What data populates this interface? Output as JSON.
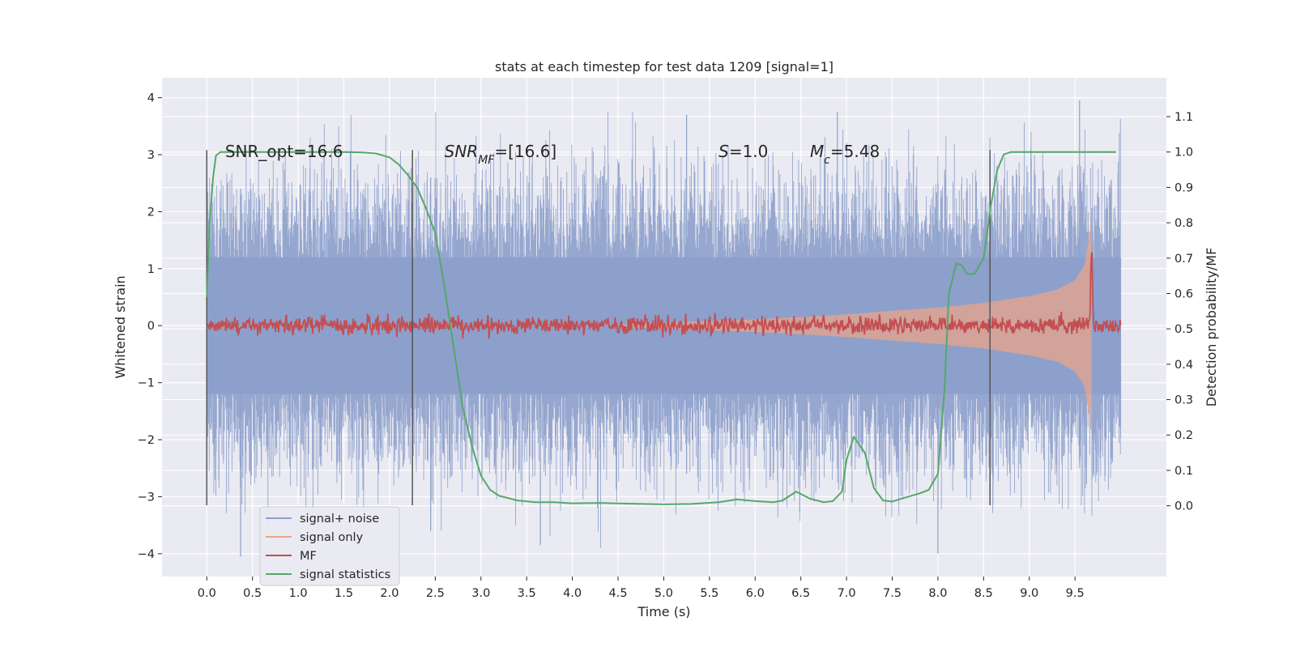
{
  "chart_data": {
    "type": "line",
    "title": "stats at each timestep for test data 1209 [signal=1]",
    "xlabel": "Time (s)",
    "ylabel_left": "Whitened strain",
    "ylabel_right": "Detection probability/MF",
    "xlim": [
      -0.49,
      10.5
    ],
    "ylim_left": [
      -4.4,
      4.35
    ],
    "ylim_right": [
      -0.2,
      1.21
    ],
    "x_ticks": [
      0.0,
      0.5,
      1.0,
      1.5,
      2.0,
      2.5,
      3.0,
      3.5,
      4.0,
      4.5,
      5.0,
      5.5,
      6.0,
      6.5,
      7.0,
      7.5,
      8.0,
      8.5,
      9.0,
      9.5
    ],
    "x_tick_labels": [
      "0.0",
      "0.5",
      "1.0",
      "1.5",
      "2.0",
      "2.5",
      "3.0",
      "3.5",
      "4.0",
      "4.5",
      "5.0",
      "5.5",
      "6.0",
      "6.5",
      "7.0",
      "7.5",
      "8.0",
      "8.5",
      "9.0",
      "9.5"
    ],
    "y_left_ticks": [
      4,
      3,
      2,
      1,
      0,
      -1,
      -2,
      -3,
      -4
    ],
    "y_left_tick_labels": [
      "4",
      "3",
      "2",
      "1",
      "0",
      "−1",
      "−2",
      "−3",
      "−4"
    ],
    "y_right_ticks": [
      1.1,
      1.0,
      0.9,
      0.8,
      0.7,
      0.6,
      0.5,
      0.4,
      0.3,
      0.2,
      0.1,
      0.0
    ],
    "y_right_tick_labels": [
      "1.1",
      "1.0",
      "0.9",
      "0.8",
      "0.7",
      "0.6",
      "0.5",
      "0.4",
      "0.3",
      "0.2",
      "0.1",
      "0.0"
    ],
    "grid": true,
    "legend_position": "lower-left",
    "annotations": [
      {
        "text": "SNR_opt=16.6",
        "x": 0.2,
        "y": 3.06
      },
      {
        "text": "SNR_MF=[16.6]",
        "x": 2.6,
        "y": 3.06
      },
      {
        "text": "S=1.0",
        "x": 5.6,
        "y": 3.06
      },
      {
        "text": "M_c=5.48",
        "x": 6.6,
        "y": 3.06
      }
    ],
    "vertical_markers": [
      {
        "x": 0.0,
        "y_range": [
          -3.15,
          3.08
        ]
      },
      {
        "x": 2.25,
        "y_range": [
          -3.15,
          3.08
        ]
      },
      {
        "x": 8.57,
        "y_range": [
          -3.15,
          3.08
        ]
      }
    ],
    "series": [
      {
        "name": "signal+ noise",
        "axis": "left",
        "color": "#8da0cb",
        "kind": "noise",
        "x_range": [
          0.0,
          10.0
        ],
        "band_std": 1.0,
        "peak_max": 3.95,
        "peak_min": -4.05
      },
      {
        "name": "signal only",
        "axis": "left",
        "color": "#e8a48a",
        "kind": "chirp_envelope",
        "x": [
          4.5,
          5.0,
          5.5,
          6.0,
          6.5,
          7.0,
          7.5,
          8.0,
          8.5,
          9.0,
          9.3,
          9.5,
          9.6,
          9.66,
          9.68
        ],
        "upper": [
          0.02,
          0.05,
          0.08,
          0.11,
          0.15,
          0.2,
          0.26,
          0.32,
          0.4,
          0.52,
          0.63,
          0.8,
          1.05,
          1.6,
          2.1
        ],
        "lower": [
          -0.02,
          -0.05,
          -0.08,
          -0.11,
          -0.15,
          -0.2,
          -0.26,
          -0.32,
          -0.4,
          -0.52,
          -0.63,
          -0.8,
          -1.05,
          -1.6,
          -1.9
        ]
      },
      {
        "name": "MF",
        "axis": "right",
        "color": "#c44e52",
        "kind": "matched_filter",
        "x_range": [
          0.0,
          10.0
        ],
        "baseline": 0.51,
        "noise_amp": 0.012,
        "peak": {
          "x": 9.68,
          "value": 0.72
        }
      },
      {
        "name": "signal statistics",
        "axis": "right",
        "color": "#55a868",
        "kind": "line",
        "x": [
          0.0,
          0.03,
          0.07,
          0.1,
          0.15,
          0.3,
          0.6,
          1.0,
          1.5,
          1.7,
          1.85,
          2.0,
          2.1,
          2.2,
          2.3,
          2.4,
          2.5,
          2.6,
          2.7,
          2.8,
          2.9,
          3.0,
          3.1,
          3.2,
          3.4,
          3.6,
          3.8,
          4.0,
          4.3,
          4.6,
          5.0,
          5.3,
          5.6,
          5.8,
          6.0,
          6.2,
          6.3,
          6.45,
          6.6,
          6.75,
          6.85,
          6.95,
          7.0,
          7.08,
          7.2,
          7.3,
          7.4,
          7.5,
          7.6,
          7.8,
          7.9,
          8.0,
          8.07,
          8.12,
          8.2,
          8.26,
          8.32,
          8.4,
          8.5,
          8.58,
          8.65,
          8.72,
          8.8,
          8.9,
          9.0,
          9.5,
          9.95
        ],
        "y": [
          0.59,
          0.8,
          0.93,
          0.99,
          1.0,
          1.0,
          1.0,
          1.0,
          1.0,
          0.999,
          0.996,
          0.985,
          0.965,
          0.935,
          0.9,
          0.84,
          0.77,
          0.62,
          0.45,
          0.28,
          0.17,
          0.085,
          0.045,
          0.028,
          0.015,
          0.01,
          0.01,
          0.007,
          0.008,
          0.006,
          0.004,
          0.005,
          0.01,
          0.018,
          0.013,
          0.01,
          0.015,
          0.04,
          0.02,
          0.01,
          0.013,
          0.04,
          0.13,
          0.195,
          0.15,
          0.05,
          0.015,
          0.012,
          0.02,
          0.035,
          0.045,
          0.09,
          0.32,
          0.6,
          0.685,
          0.68,
          0.655,
          0.655,
          0.7,
          0.85,
          0.95,
          0.993,
          1.0,
          1.0,
          1.0,
          1.0,
          1.0
        ]
      }
    ]
  }
}
